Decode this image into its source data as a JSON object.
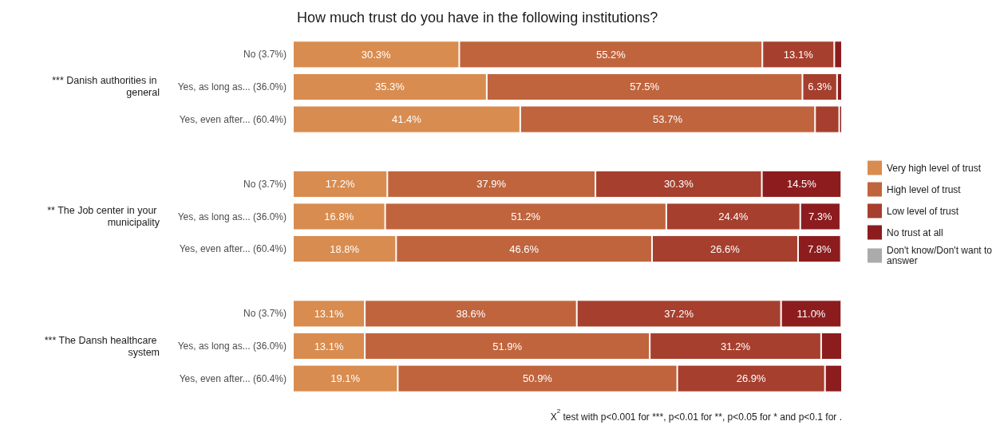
{
  "chart_data": {
    "type": "bar",
    "orientation": "horizontal",
    "stacked": true,
    "title": "How much trust do you have in the following institutions?",
    "categories": [
      "No (3.7%)",
      "Yes, as long as... (36.0%)",
      "Yes, even after... (60.4%)",
      null,
      "No (3.7%)",
      "Yes, as long as... (36.0%)",
      "Yes, even after... (60.4%)",
      null,
      "No (3.7%)",
      "Yes, as long as... (36.0%)",
      "Yes, even after... (60.4%)"
    ],
    "tick_labels": "y",
    "legend": "right",
    "annotations": [
      "*** Danish authorities in general",
      "** The Job center in your municipality",
      "*** The Dansh healthcare system",
      "X$^{2}$ test with p<0.001 for ***, p<0.01 for **, p<0.05 for * and p<0.1 for ."
    ],
    "series": [
      {
        "name": "Very high level of trust",
        "color": "#d98c4f",
        "values": [
          30.3,
          35.3,
          41.4,
          null,
          17.2,
          16.8,
          18.8,
          null,
          13.1,
          13.1,
          19.1
        ],
        "value_labels": [
          "30.3%",
          "35.3%",
          "41.4%",
          null,
          "17.2%",
          "16.8%",
          "18.8%",
          null,
          "13.1%",
          "13.1%",
          "19.1%"
        ]
      },
      {
        "name": "High level of trust",
        "color": "#c0643d",
        "values": [
          55.2,
          57.5,
          53.7,
          null,
          37.9,
          51.2,
          46.6,
          null,
          38.6,
          51.9,
          50.9
        ],
        "value_labels": [
          "55.2%",
          "57.5%",
          "53.7%",
          null,
          "37.9%",
          "51.2%",
          "46.6%",
          null,
          "38.6%",
          "51.9%",
          "50.9%"
        ]
      },
      {
        "name": "Low level of trust",
        "color": "#a63f2e",
        "values": [
          13.1,
          6.3,
          4.4,
          null,
          30.3,
          24.4,
          26.6,
          null,
          37.2,
          31.2,
          26.9
        ],
        "value_labels": [
          "13.1%",
          "6.3%",
          null,
          null,
          "30.3%",
          "24.4%",
          "26.6%",
          null,
          "37.2%",
          "31.2%",
          "26.9%"
        ]
      },
      {
        "name": "No trust at all",
        "color": "#8c1c1e",
        "values": [
          1.4,
          0.9,
          0.5,
          null,
          14.5,
          7.3,
          7.8,
          null,
          11.0,
          3.8,
          3.1
        ],
        "value_labels": [
          null,
          null,
          null,
          null,
          "14.5%",
          "7.3%",
          "7.8%",
          null,
          "11.0%",
          null,
          null
        ]
      },
      {
        "name": "Don't know/Don't want to answer",
        "color": "#ababab",
        "values": [
          null,
          null,
          null,
          null,
          null,
          null,
          null,
          null,
          null,
          null,
          null
        ],
        "value_labels": [
          null,
          null,
          null,
          null,
          null,
          null,
          null,
          null,
          null,
          null,
          null
        ]
      }
    ]
  }
}
